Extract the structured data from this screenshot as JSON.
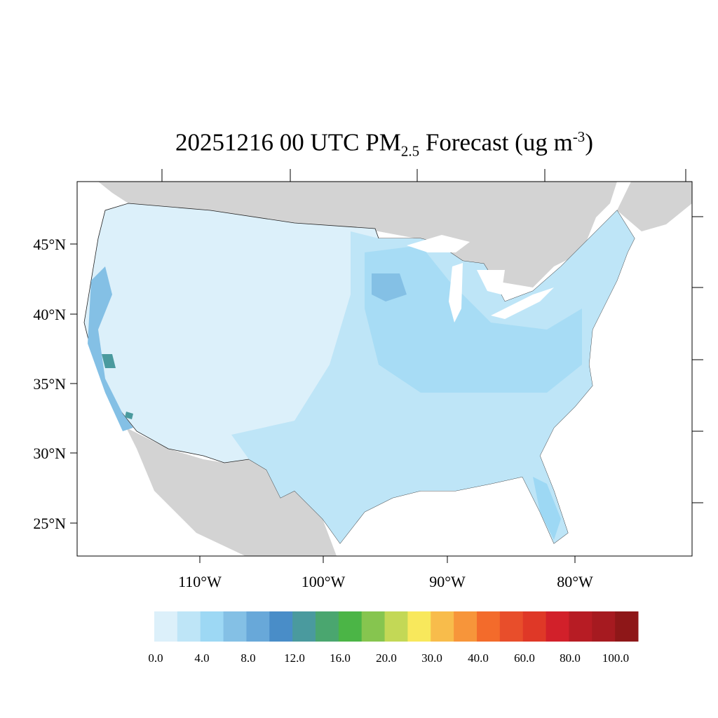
{
  "title": {
    "main": "20251216 00 UTC PM",
    "sub": "2.5",
    "mid": " Forecast (ug m",
    "sup": "-3",
    "end": ")"
  },
  "map": {
    "lat_labels": [
      "45°N",
      "40°N",
      "35°N",
      "30°N",
      "25°N"
    ],
    "lon_labels": [
      "110°W",
      "100°W",
      "90°W",
      "80°W"
    ],
    "land_color": "#d3d3d3",
    "ocean_color": "#ffffff"
  },
  "colorbar": {
    "colors": [
      "#dcf0fa",
      "#bee5f7",
      "#9dd8f4",
      "#84c0e5",
      "#68a8d9",
      "#498dc8",
      "#4a9a9e",
      "#4aa66f",
      "#4bb546",
      "#86c54f",
      "#c3d856",
      "#f8e85c",
      "#f8bc4b",
      "#f7953a",
      "#f36b2b",
      "#e84e2b",
      "#df3827",
      "#d2202a",
      "#b71c24",
      "#a61a20",
      "#8e1718"
    ],
    "labels": [
      "0.0",
      "4.0",
      "8.0",
      "12.0",
      "16.0",
      "20.0",
      "30.0",
      "40.0",
      "60.0",
      "80.0",
      "100.0"
    ]
  }
}
